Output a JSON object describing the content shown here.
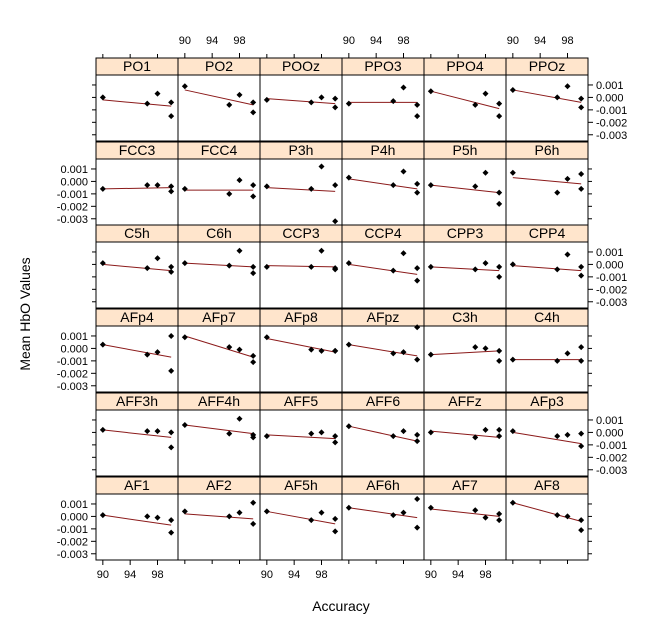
{
  "chart_data": {
    "type": "scatter",
    "xlabel": "Accuracy",
    "ylabel": "Mean HbO Values",
    "xlim": [
      89,
      101
    ],
    "ylim": [
      -0.0035,
      0.0018
    ],
    "x_ticks": [
      90,
      94,
      98
    ],
    "x_tick_labels": [
      "90",
      "94",
      "98"
    ],
    "y_ticks": [
      0.001,
      0.0,
      -0.001,
      -0.002,
      -0.003
    ],
    "y_tick_labels": [
      "0.001",
      "0.000",
      "-0.001",
      "-0.002",
      "-0.003"
    ],
    "layout": {
      "columns": 6,
      "rows": 6
    },
    "panels": [
      {
        "name": "PO1",
        "x": [
          90,
          96.5,
          98,
          100,
          100
        ],
        "y": [
          0.0,
          -0.0005,
          0.0003,
          -0.0004,
          -0.0015
        ],
        "fit": [
          [
            90,
            -0.0002
          ],
          [
            100,
            -0.0007
          ]
        ]
      },
      {
        "name": "PO2",
        "x": [
          90,
          96.5,
          98,
          100,
          100
        ],
        "y": [
          0.0009,
          -0.0006,
          0.0002,
          -0.0004,
          -0.0012
        ],
        "fit": [
          [
            90,
            0.0006
          ],
          [
            100,
            -0.0006
          ]
        ]
      },
      {
        "name": "POOz",
        "x": [
          90,
          96.5,
          98,
          100,
          100
        ],
        "y": [
          -0.0002,
          -0.0004,
          0.0,
          -0.0001,
          -0.0008
        ],
        "fit": [
          [
            90,
            -0.0001
          ],
          [
            100,
            -0.0005
          ]
        ]
      },
      {
        "name": "PPO3",
        "x": [
          90,
          96.5,
          98,
          100,
          100
        ],
        "y": [
          -0.0005,
          -0.0003,
          0.0008,
          -0.0006,
          -0.0015
        ],
        "fit": [
          [
            90,
            -0.0004
          ],
          [
            100,
            -0.0004
          ]
        ]
      },
      {
        "name": "PPO4",
        "x": [
          90,
          96.5,
          98,
          100,
          100
        ],
        "y": [
          0.0005,
          -0.0006,
          0.0003,
          -0.0005,
          -0.0015
        ],
        "fit": [
          [
            90,
            0.0005
          ],
          [
            100,
            -0.0009
          ]
        ]
      },
      {
        "name": "PPOz",
        "x": [
          90,
          96.5,
          98,
          100,
          100
        ],
        "y": [
          0.0006,
          0.0,
          0.0009,
          -0.0001,
          -0.0008
        ],
        "fit": [
          [
            90,
            0.0006
          ],
          [
            100,
            -0.0004
          ]
        ]
      },
      {
        "name": "FCC3",
        "x": [
          90,
          96.5,
          98,
          100,
          100
        ],
        "y": [
          -0.0006,
          -0.0003,
          -0.0003,
          -0.0004,
          -0.0008
        ],
        "fit": [
          [
            90,
            -0.0006
          ],
          [
            100,
            -0.0005
          ]
        ]
      },
      {
        "name": "FCC4",
        "x": [
          90,
          96.5,
          98,
          100,
          100
        ],
        "y": [
          -0.0006,
          -0.001,
          0.0001,
          -0.0003,
          -0.0012
        ],
        "fit": [
          [
            90,
            -0.0007
          ],
          [
            100,
            -0.0007
          ]
        ]
      },
      {
        "name": "P3h",
        "x": [
          90,
          96.5,
          98,
          100,
          100
        ],
        "y": [
          -0.0004,
          -0.0006,
          0.0012,
          -0.0003,
          -0.0032
        ],
        "fit": [
          [
            90,
            -0.0005
          ],
          [
            100,
            -0.0008
          ]
        ]
      },
      {
        "name": "P4h",
        "x": [
          90,
          96.5,
          98,
          100,
          100
        ],
        "y": [
          0.0003,
          -0.0003,
          0.0008,
          -0.0002,
          -0.0009
        ],
        "fit": [
          [
            90,
            0.0002
          ],
          [
            100,
            -0.0006
          ]
        ]
      },
      {
        "name": "P5h",
        "x": [
          90,
          96.5,
          98,
          100,
          100
        ],
        "y": [
          -0.0003,
          -0.0004,
          0.0007,
          -0.0009,
          -0.0018
        ],
        "fit": [
          [
            90,
            -0.0003
          ],
          [
            100,
            -0.0009
          ]
        ]
      },
      {
        "name": "P6h",
        "x": [
          90,
          96.5,
          98,
          100,
          100
        ],
        "y": [
          0.0007,
          -0.0009,
          0.0002,
          0.0006,
          -0.0006
        ],
        "fit": [
          [
            90,
            0.0003
          ],
          [
            100,
            -0.0002
          ]
        ]
      },
      {
        "name": "C5h",
        "x": [
          90,
          96.5,
          98,
          100,
          100
        ],
        "y": [
          0.0001,
          -0.0003,
          0.0005,
          -0.0002,
          -0.0006
        ],
        "fit": [
          [
            90,
            0.0
          ],
          [
            100,
            -0.0005
          ]
        ]
      },
      {
        "name": "C6h",
        "x": [
          90,
          96.5,
          98,
          100,
          100
        ],
        "y": [
          0.0001,
          -0.0001,
          0.0011,
          -0.0002,
          -0.0007
        ],
        "fit": [
          [
            90,
            0.0001
          ],
          [
            100,
            -0.0002
          ]
        ]
      },
      {
        "name": "CCP3",
        "x": [
          90,
          96.5,
          98,
          100,
          100
        ],
        "y": [
          -0.0002,
          -0.0002,
          0.0011,
          -0.0003,
          -0.0004
        ],
        "fit": [
          [
            90,
            -0.0001
          ],
          [
            100,
            -0.0002
          ]
        ]
      },
      {
        "name": "CCP4",
        "x": [
          90,
          96.5,
          98,
          100,
          100
        ],
        "y": [
          0.0001,
          -0.0005,
          0.0009,
          -0.0003,
          -0.0013
        ],
        "fit": [
          [
            90,
            0.0
          ],
          [
            100,
            -0.0008
          ]
        ]
      },
      {
        "name": "CPP3",
        "x": [
          90,
          96.5,
          98,
          100,
          100
        ],
        "y": [
          -0.0002,
          -0.0004,
          0.0001,
          -0.0002,
          -0.001
        ],
        "fit": [
          [
            90,
            -0.0002
          ],
          [
            100,
            -0.0005
          ]
        ]
      },
      {
        "name": "CPP4",
        "x": [
          90,
          96.5,
          98,
          100,
          100
        ],
        "y": [
          0.0,
          -0.0004,
          0.0008,
          -0.0002,
          -0.0009
        ],
        "fit": [
          [
            90,
            -0.0001
          ],
          [
            100,
            -0.0005
          ]
        ]
      },
      {
        "name": "AFp4",
        "x": [
          90,
          96.5,
          98,
          100,
          100
        ],
        "y": [
          0.0003,
          -0.0005,
          -0.0003,
          0.001,
          -0.0018
        ],
        "fit": [
          [
            90,
            0.0003
          ],
          [
            100,
            -0.0007
          ]
        ]
      },
      {
        "name": "AFp7",
        "x": [
          90,
          96.5,
          98,
          100,
          100
        ],
        "y": [
          0.0009,
          0.0001,
          -0.0001,
          -0.0006,
          -0.0011
        ],
        "fit": [
          [
            90,
            0.001
          ],
          [
            100,
            -0.0007
          ]
        ]
      },
      {
        "name": "AFp8",
        "x": [
          90,
          96.5,
          98,
          100,
          100
        ],
        "y": [
          0.0009,
          -0.0001,
          -0.0002,
          -0.0002,
          -0.0002
        ],
        "fit": [
          [
            90,
            0.0008
          ],
          [
            100,
            -0.0003
          ]
        ]
      },
      {
        "name": "AFpz",
        "x": [
          90,
          96.5,
          98,
          100,
          100
        ],
        "y": [
          0.0003,
          -0.0004,
          -0.0003,
          0.0017,
          -0.0009
        ],
        "fit": [
          [
            90,
            0.0003
          ],
          [
            100,
            -0.0006
          ]
        ]
      },
      {
        "name": "C3h",
        "x": [
          90,
          96.5,
          98,
          100,
          100
        ],
        "y": [
          -0.0005,
          0.0001,
          0.0,
          -0.0002,
          -0.001
        ],
        "fit": [
          [
            90,
            -0.0005
          ],
          [
            100,
            -0.0002
          ]
        ]
      },
      {
        "name": "C4h",
        "x": [
          90,
          96.5,
          98,
          100,
          100
        ],
        "y": [
          -0.0009,
          -0.001,
          -0.0004,
          0.0001,
          -0.001
        ],
        "fit": [
          [
            90,
            -0.0009
          ],
          [
            100,
            -0.0009
          ]
        ]
      },
      {
        "name": "AFF3h",
        "x": [
          90,
          96.5,
          98,
          100,
          100
        ],
        "y": [
          0.0002,
          0.0001,
          0.0001,
          0.0,
          -0.0012
        ],
        "fit": [
          [
            90,
            0.0002
          ],
          [
            100,
            -0.0004
          ]
        ]
      },
      {
        "name": "AFF4h",
        "x": [
          90,
          96.5,
          98,
          100,
          100
        ],
        "y": [
          0.0006,
          -0.0001,
          0.0011,
          -0.0002,
          -0.0004
        ],
        "fit": [
          [
            90,
            0.0006
          ],
          [
            100,
            -0.0001
          ]
        ]
      },
      {
        "name": "AFF5",
        "x": [
          90,
          96.5,
          98,
          100,
          100
        ],
        "y": [
          -0.0003,
          -0.0001,
          0.0,
          -0.0003,
          -0.0008
        ],
        "fit": [
          [
            90,
            -0.0002
          ],
          [
            100,
            -0.0005
          ]
        ]
      },
      {
        "name": "AFF6",
        "x": [
          90,
          96.5,
          98,
          100,
          100
        ],
        "y": [
          0.0005,
          -0.0003,
          0.0001,
          -0.0002,
          -0.0007
        ],
        "fit": [
          [
            90,
            0.0005
          ],
          [
            100,
            -0.0007
          ]
        ]
      },
      {
        "name": "AFFz",
        "x": [
          90,
          96.5,
          98,
          100,
          100
        ],
        "y": [
          0.0,
          -0.0004,
          0.0002,
          -0.0003,
          0.0002
        ],
        "fit": [
          [
            90,
            0.0001
          ],
          [
            100,
            -0.0004
          ]
        ]
      },
      {
        "name": "AFp3",
        "x": [
          90,
          96.5,
          98,
          100,
          100
        ],
        "y": [
          0.0001,
          -0.0003,
          -0.0002,
          -0.0001,
          -0.0011
        ],
        "fit": [
          [
            90,
            0.0
          ],
          [
            100,
            -0.0009
          ]
        ]
      },
      {
        "name": "AF1",
        "x": [
          90,
          96.5,
          98,
          100,
          100
        ],
        "y": [
          0.0001,
          0.0,
          -0.0001,
          -0.0003,
          -0.0013
        ],
        "fit": [
          [
            90,
            0.0001
          ],
          [
            100,
            -0.0007
          ]
        ]
      },
      {
        "name": "AF2",
        "x": [
          90,
          96.5,
          98,
          100,
          100
        ],
        "y": [
          0.0004,
          0.0,
          0.0003,
          0.0011,
          -0.0006
        ],
        "fit": [
          [
            90,
            0.0002
          ],
          [
            100,
            -0.0002
          ]
        ]
      },
      {
        "name": "AF5h",
        "x": [
          90,
          96.5,
          98,
          100,
          100
        ],
        "y": [
          0.0004,
          -0.0003,
          0.0003,
          -0.0002,
          -0.0012
        ],
        "fit": [
          [
            90,
            0.0004
          ],
          [
            100,
            -0.0006
          ]
        ]
      },
      {
        "name": "AF6h",
        "x": [
          90,
          96.5,
          98,
          100,
          100
        ],
        "y": [
          0.0007,
          0.0001,
          0.0003,
          0.0014,
          -0.0009
        ],
        "fit": [
          [
            90,
            0.0007
          ],
          [
            100,
            -0.0001
          ]
        ]
      },
      {
        "name": "AF7",
        "x": [
          90,
          96.5,
          98,
          100,
          100
        ],
        "y": [
          0.0007,
          0.0005,
          -0.0001,
          0.0002,
          -0.0003
        ],
        "fit": [
          [
            90,
            0.0006
          ],
          [
            100,
            0.0
          ]
        ]
      },
      {
        "name": "AF8",
        "x": [
          90,
          96.5,
          98,
          100,
          100
        ],
        "y": [
          0.0011,
          0.0001,
          0.0,
          -0.0003,
          -0.0011
        ],
        "fit": [
          [
            90,
            0.0011
          ],
          [
            100,
            -0.0004
          ]
        ]
      }
    ]
  }
}
